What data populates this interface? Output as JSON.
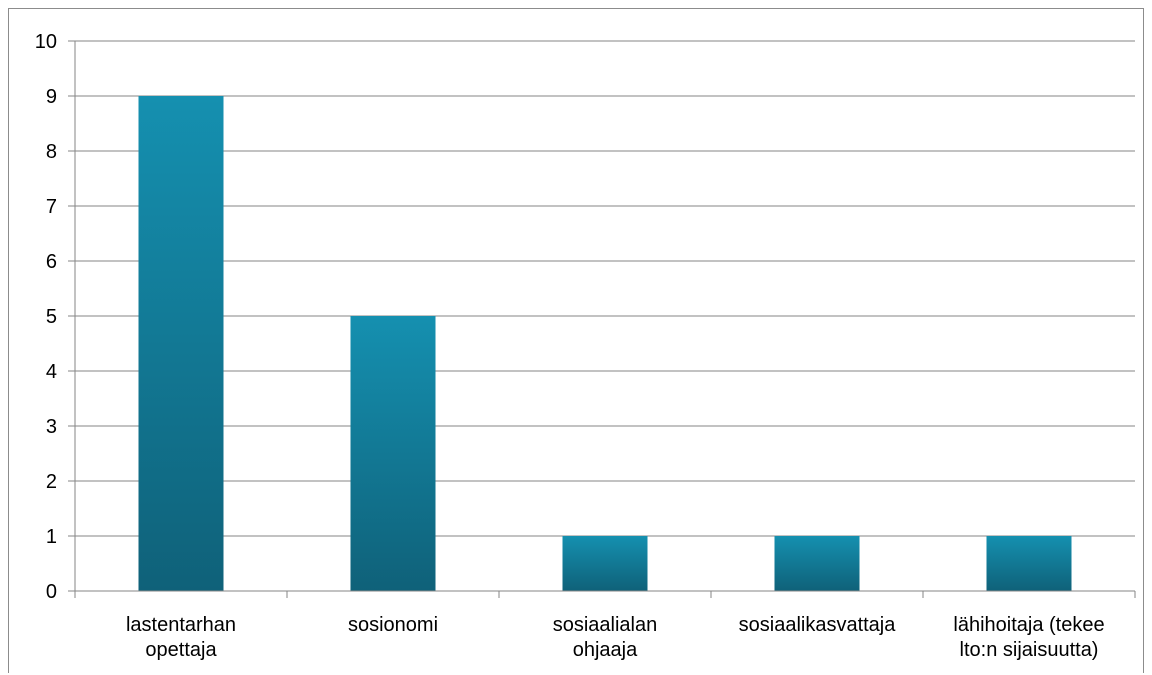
{
  "chart_data": {
    "type": "bar",
    "title": "",
    "xlabel": "",
    "ylabel": "",
    "categories": [
      [
        "lastentarhan",
        "opettaja"
      ],
      [
        "sosionomi"
      ],
      [
        "sosiaalialan",
        "ohjaaja"
      ],
      [
        "sosiaalikasvattaja"
      ],
      [
        "lähihoitaja (tekee",
        "lto:n sijaisuutta)"
      ]
    ],
    "values": [
      9,
      5,
      1,
      1,
      1
    ],
    "ylim": [
      0,
      10
    ],
    "yticks": [
      0,
      1,
      2,
      3,
      4,
      5,
      6,
      7,
      8,
      9,
      10
    ],
    "grid": true,
    "legend": "none",
    "colors": {
      "bar_top": "#1590b0",
      "bar_bottom": "#0f6179",
      "grid": "#868686",
      "axis": "#868686",
      "frame": "#8c8c8c"
    }
  }
}
